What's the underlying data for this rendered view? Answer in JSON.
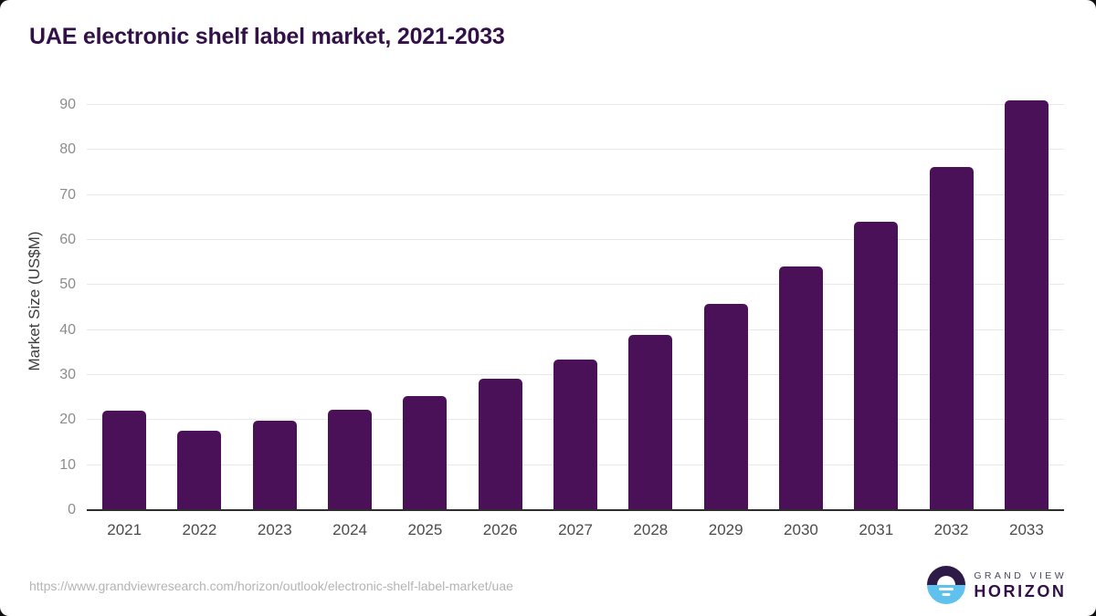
{
  "page": {
    "title": "UAE electronic shelf label market, 2021-2033"
  },
  "chart_data": {
    "type": "bar",
    "title": "UAE electronic shelf label market, 2021-2033",
    "categories": [
      "2021",
      "2022",
      "2023",
      "2024",
      "2025",
      "2026",
      "2027",
      "2028",
      "2029",
      "2030",
      "2031",
      "2032",
      "2033"
    ],
    "values": [
      22.0,
      17.7,
      19.8,
      22.4,
      25.4,
      29.1,
      33.5,
      39.0,
      45.9,
      54.2,
      64.1,
      76.2,
      91.0
    ],
    "xlabel": "",
    "ylabel": "Market Size (US$M)",
    "ylim": [
      0,
      90
    ],
    "yticks": [
      0,
      10,
      20,
      30,
      40,
      50,
      60,
      70,
      80,
      90
    ],
    "grid": true,
    "legend": false,
    "bar_color": "#4a1158"
  },
  "footer": {
    "source_url": "https://www.grandviewresearch.com/horizon/outlook/electronic-shelf-label-market/uae",
    "logo": {
      "brand_top": "GRAND VIEW",
      "brand_bottom": "HORIZON"
    }
  },
  "colors": {
    "bar": "#4a1158",
    "title": "#321048",
    "gridline": "#e8e8e8",
    "axis_line": "#2e2e2e",
    "ytick_text": "#8c8c8c",
    "xtick_text": "#4b4b4b",
    "url_text": "#b4b4b4",
    "logo_dark_purple": "#2d1a47",
    "logo_light_blue": "#5ec1ee"
  }
}
